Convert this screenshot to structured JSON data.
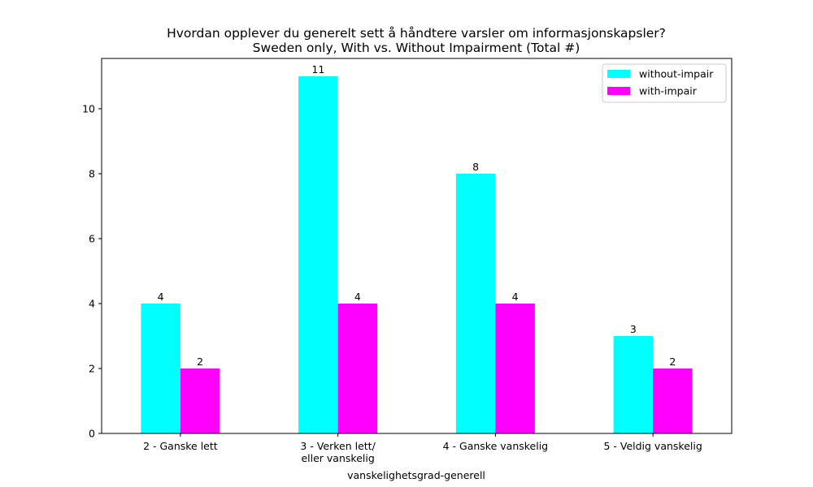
{
  "chart_data": {
    "type": "bar",
    "title": "Hvordan opplever du generelt sett å håndtere varsler om informasjonskapsler?",
    "subtitle": "Sweden only, With vs. Without Impairment (Total #)",
    "xlabel": "vanskelighetsgrad-generell",
    "ylabel": "",
    "categories": [
      "2 - Ganske lett",
      "3 - Verken lett/\neller vanskelig",
      "4 - Ganske vanskelig",
      "5 - Veldig vanskelig"
    ],
    "series": [
      {
        "name": "without-impair",
        "color": "#00ffff",
        "values": [
          4,
          11,
          8,
          3
        ]
      },
      {
        "name": "with-impair",
        "color": "#ff00ff",
        "values": [
          2,
          4,
          4,
          2
        ]
      }
    ],
    "ylim": [
      0,
      11.55
    ],
    "yticks": [
      0,
      2,
      4,
      6,
      8,
      10
    ],
    "grid": false,
    "legend_position": "top-right",
    "data_labels": true
  }
}
